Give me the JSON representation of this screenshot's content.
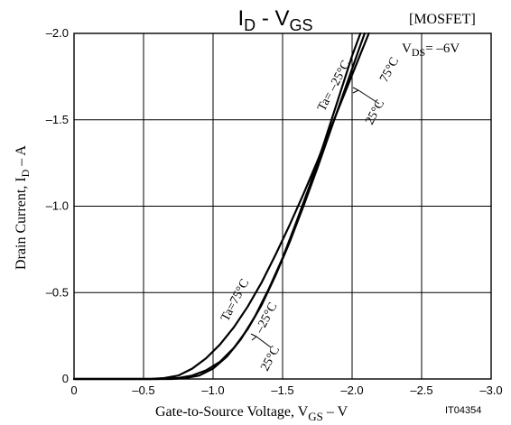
{
  "chart_data": {
    "type": "line",
    "title": {
      "main": "I",
      "main_sub": "D",
      "sep": " - ",
      "var": "V",
      "var_sub": "GS"
    },
    "tag": "[MOSFET]",
    "condition": {
      "prefix": "V",
      "sub": "DS",
      "suffix": "= –6V"
    },
    "xlabel": {
      "main": "Gate-to-Source Voltage, V",
      "sub": "GS",
      "tail": " – V"
    },
    "ylabel": {
      "main": "Drain Current, I",
      "sub": "D",
      "tail": " – A"
    },
    "figure_id": "IT04354",
    "x_ticks": [
      "0",
      "–0.5",
      "–1.0",
      "–1.5",
      "–2.0",
      "–2.5",
      "–3.0"
    ],
    "y_ticks": [
      "0",
      "–0.5",
      "–1.0",
      "–1.5",
      "–2.0"
    ],
    "xlim": [
      0,
      -3.0
    ],
    "ylim": [
      0,
      -2.0
    ],
    "grid": true,
    "series": [
      {
        "name": "Ta= –25°C",
        "points": [
          [
            0,
            0
          ],
          [
            -0.5,
            0
          ],
          [
            -0.7,
            0
          ],
          [
            -0.8,
            -0.005
          ],
          [
            -0.9,
            -0.02
          ],
          [
            -1.0,
            -0.06
          ],
          [
            -1.1,
            -0.13
          ],
          [
            -1.2,
            -0.23
          ],
          [
            -1.3,
            -0.36
          ],
          [
            -1.4,
            -0.52
          ],
          [
            -1.5,
            -0.7
          ],
          [
            -1.6,
            -0.91
          ],
          [
            -1.7,
            -1.13
          ],
          [
            -1.8,
            -1.37
          ],
          [
            -1.9,
            -1.62
          ],
          [
            -2.0,
            -1.87
          ],
          [
            -2.06,
            -2.0
          ]
        ]
      },
      {
        "name": "25°C",
        "points": [
          [
            0,
            0
          ],
          [
            -0.6,
            0
          ],
          [
            -0.75,
            -0.005
          ],
          [
            -0.85,
            -0.02
          ],
          [
            -0.95,
            -0.05
          ],
          [
            -1.05,
            -0.1
          ],
          [
            -1.15,
            -0.18
          ],
          [
            -1.25,
            -0.29
          ],
          [
            -1.35,
            -0.43
          ],
          [
            -1.45,
            -0.6
          ],
          [
            -1.55,
            -0.79
          ],
          [
            -1.65,
            -1.0
          ],
          [
            -1.75,
            -1.22
          ],
          [
            -1.85,
            -1.45
          ],
          [
            -1.95,
            -1.68
          ],
          [
            -2.05,
            -1.91
          ],
          [
            -2.09,
            -2.0
          ]
        ]
      },
      {
        "name": "75°C",
        "points": [
          [
            0,
            0
          ],
          [
            -0.55,
            0
          ],
          [
            -0.65,
            -0.005
          ],
          [
            -0.75,
            -0.02
          ],
          [
            -0.85,
            -0.06
          ],
          [
            -0.95,
            -0.12
          ],
          [
            -1.05,
            -0.2
          ],
          [
            -1.15,
            -0.3
          ],
          [
            -1.25,
            -0.42
          ],
          [
            -1.35,
            -0.56
          ],
          [
            -1.45,
            -0.72
          ],
          [
            -1.55,
            -0.89
          ],
          [
            -1.65,
            -1.07
          ],
          [
            -1.75,
            -1.26
          ],
          [
            -1.85,
            -1.46
          ],
          [
            -1.95,
            -1.66
          ],
          [
            -2.05,
            -1.86
          ],
          [
            -2.12,
            -2.0
          ]
        ]
      }
    ],
    "annotations": [
      {
        "text": "Ta= –25°C"
      },
      {
        "text": "75°C"
      },
      {
        "text": "25°C"
      },
      {
        "text": "Ta=75°C"
      },
      {
        "text": "–25°C"
      },
      {
        "text": "25°C"
      }
    ]
  }
}
